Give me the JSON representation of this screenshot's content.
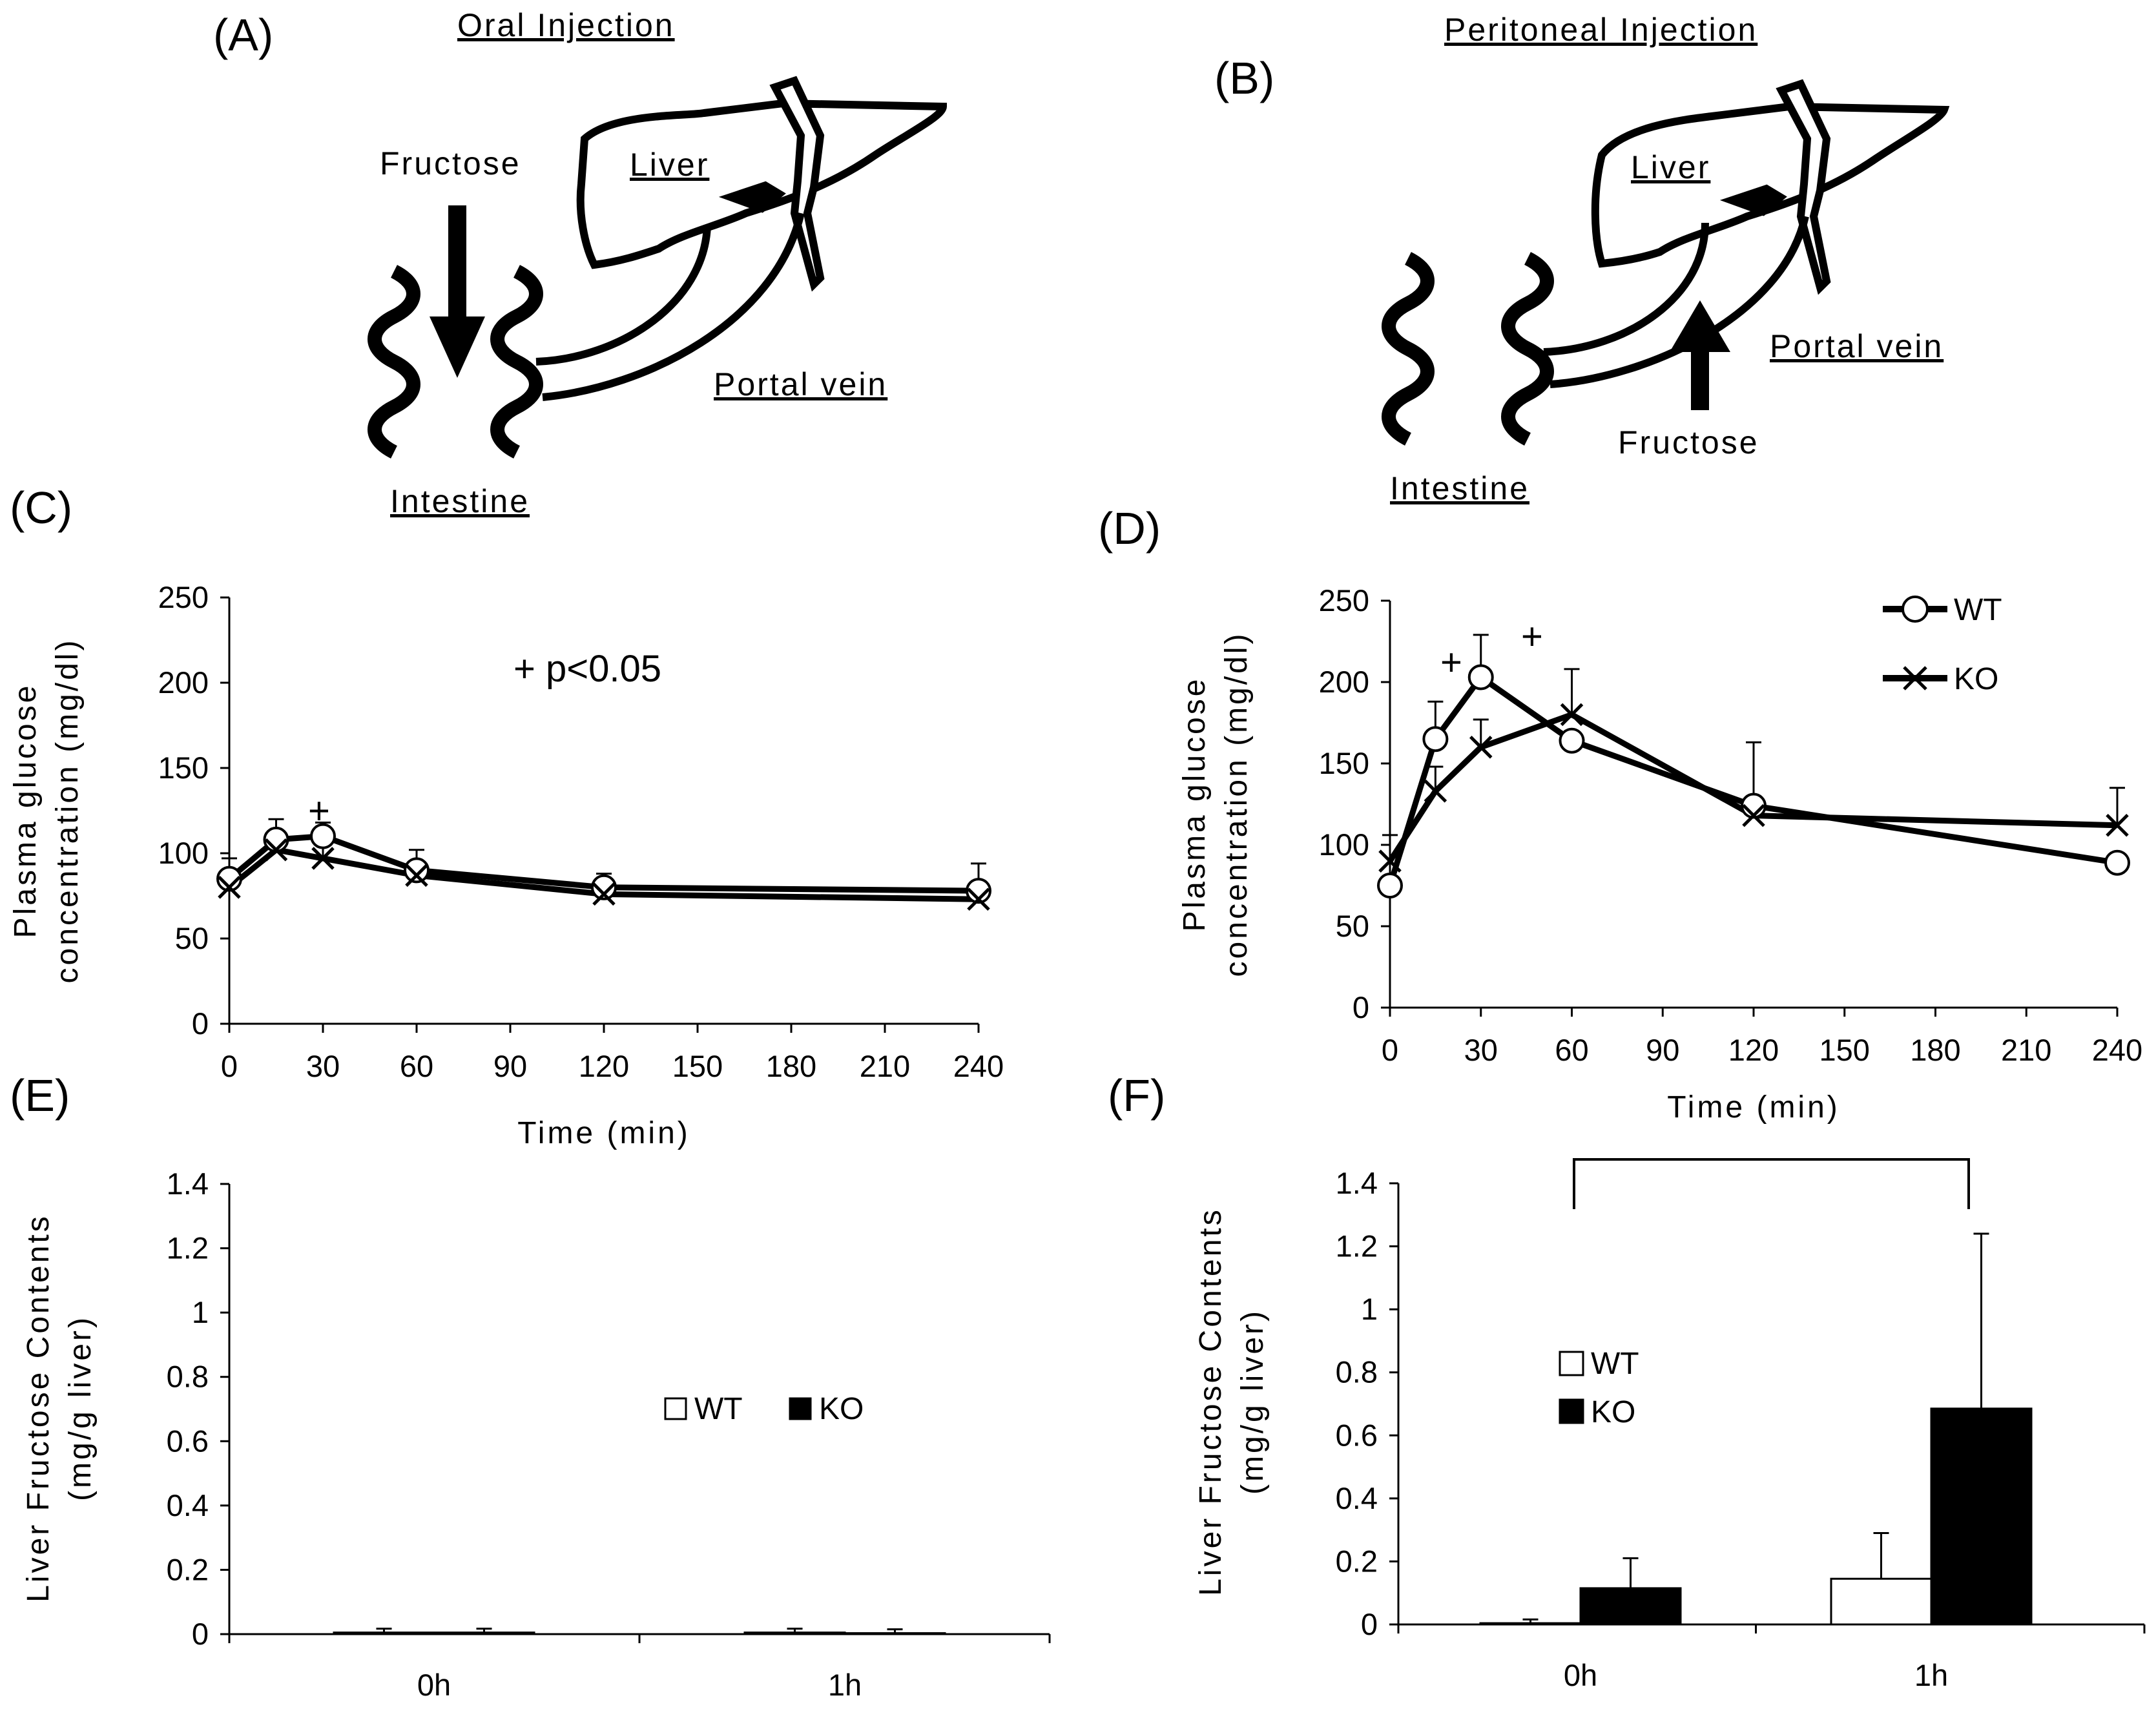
{
  "panels": {
    "A": {
      "letter": "(A)",
      "title": "Oral Injection",
      "fructose": "Fructose",
      "liver": "Liver",
      "portal_vein": "Portal vein",
      "intestine": "Intestine"
    },
    "B": {
      "letter": "(B)",
      "title": "Peritoneal  Injection",
      "fructose": "Fructose",
      "liver": "Liver",
      "portal_vein": "Portal vein",
      "intestine": "Intestine"
    },
    "C": {
      "letter": "(C)",
      "annotation": "+ p<0.05",
      "plus_marks": [
        "+"
      ]
    },
    "D": {
      "letter": "(D)",
      "plus_marks": [
        "+",
        "+"
      ]
    },
    "E": {
      "letter": "(E)"
    },
    "F": {
      "letter": "(F)"
    }
  },
  "colors": {
    "ink": "#000000",
    "background": "#ffffff",
    "wt_bar": "#ffffff",
    "ko_bar": "#000000"
  },
  "chart_data": [
    {
      "id": "C",
      "type": "line",
      "ylabel": [
        "Plasma glucose",
        "concentration (mg/dl)"
      ],
      "xlabel": "Time (min)",
      "xlim": [
        0,
        240
      ],
      "ylim": [
        0,
        250
      ],
      "xticks": [
        0,
        30,
        60,
        90,
        120,
        150,
        180,
        210,
        240
      ],
      "yticks": [
        0,
        50,
        100,
        150,
        200,
        250
      ],
      "x": [
        0,
        15,
        30,
        60,
        120,
        240
      ],
      "series": [
        {
          "name": "WT",
          "marker": "circle",
          "values": [
            85,
            108,
            110,
            90,
            80,
            78
          ],
          "errors": [
            12,
            12,
            8,
            12,
            8,
            16
          ]
        },
        {
          "name": "KO",
          "marker": "x",
          "values": [
            80,
            102,
            97,
            87,
            76,
            73
          ],
          "errors": [
            0,
            0,
            10,
            0,
            0,
            0
          ]
        }
      ],
      "grid": false,
      "legend": "none"
    },
    {
      "id": "D",
      "type": "line",
      "ylabel": [
        "Plasma glucose",
        "concentration (mg/dl)"
      ],
      "xlabel": "Time (min)",
      "xlim": [
        0,
        240
      ],
      "ylim": [
        0,
        250
      ],
      "xticks": [
        0,
        30,
        60,
        90,
        120,
        150,
        180,
        210,
        240
      ],
      "yticks": [
        0,
        50,
        100,
        150,
        200,
        250
      ],
      "x": [
        0,
        15,
        30,
        60,
        120,
        240
      ],
      "series": [
        {
          "name": "WT",
          "marker": "circle",
          "values": [
            75,
            165,
            203,
            164,
            124,
            89
          ],
          "errors": [
            0,
            23,
            26,
            0,
            0,
            0
          ]
        },
        {
          "name": "KO",
          "marker": "x",
          "values": [
            90,
            133,
            160,
            180,
            118,
            112
          ],
          "errors": [
            16,
            15,
            17,
            28,
            45,
            23
          ]
        }
      ],
      "grid": false,
      "legend": "top-right"
    },
    {
      "id": "E",
      "type": "bar",
      "ylabel": [
        "Liver Fructose Contents",
        "(mg/g liver)"
      ],
      "categories": [
        "0h",
        "1h"
      ],
      "ylim": [
        0,
        1.4
      ],
      "yticks": [
        "0",
        "0.2",
        "0.4",
        "0.6",
        "0.8",
        "1",
        "1.2",
        "1.4"
      ],
      "series": [
        {
          "name": "WT",
          "values": [
            0.005,
            0.005
          ],
          "errors": [
            0.012,
            0.012
          ]
        },
        {
          "name": "KO",
          "values": [
            0.005,
            0.003
          ],
          "errors": [
            0.012,
            0.012
          ]
        }
      ],
      "legend": "center-right"
    },
    {
      "id": "F",
      "type": "bar",
      "ylabel": [
        "Liver Fructose Contents",
        "(mg/g liver)"
      ],
      "categories": [
        "0h",
        "1h"
      ],
      "ylim": [
        0,
        1.4
      ],
      "yticks": [
        "0",
        "0.2",
        "0.4",
        "0.6",
        "0.8",
        "1",
        "1.2",
        "1.4"
      ],
      "series": [
        {
          "name": "WT",
          "values": [
            0.004,
            0.145
          ],
          "errors": [
            0.012,
            0.145
          ]
        },
        {
          "name": "KO",
          "values": [
            0.115,
            0.685
          ],
          "errors": [
            0.095,
            0.555
          ]
        }
      ],
      "significance_bracket": [
        "0h",
        "1h"
      ],
      "legend": "center-left"
    }
  ]
}
